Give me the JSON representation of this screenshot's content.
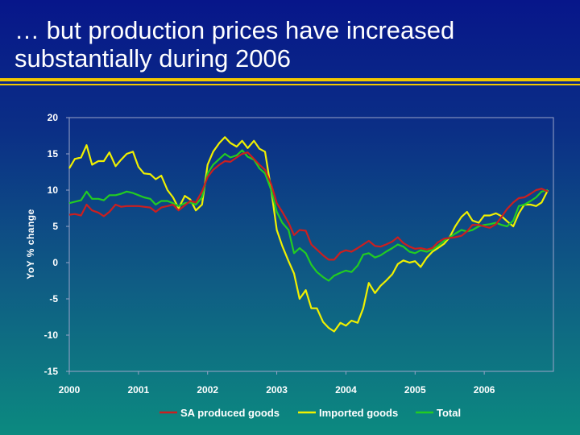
{
  "slide": {
    "title": "… but production prices have increased substantially during 2006"
  },
  "colors": {
    "background_top": "#07168a",
    "background_bottom": "#0c8a80",
    "rule": "#f2c800",
    "text": "#ffffff"
  },
  "chart_data": {
    "type": "line",
    "title": "",
    "xlabel": "",
    "ylabel": "YoY % change",
    "xlim": [
      2000,
      2007
    ],
    "ylim": [
      -15,
      20
    ],
    "y_ticks": [
      20,
      15,
      10,
      5,
      0,
      -5,
      -10,
      -15
    ],
    "x_ticks": [
      "2000",
      "2001",
      "2002",
      "2003",
      "2004",
      "2005",
      "2006"
    ],
    "x_tick_values": [
      2000,
      2001,
      2002,
      2003,
      2004,
      2005,
      2006
    ],
    "grid": false,
    "legend": "bottom",
    "series": [
      {
        "name": "SA produced goods",
        "color": "#cc1f1f",
        "x": [
          2000.0,
          2000.08,
          2000.17,
          2000.25,
          2000.33,
          2000.42,
          2000.5,
          2000.58,
          2000.67,
          2000.75,
          2000.83,
          2000.92,
          2001.0,
          2001.08,
          2001.17,
          2001.25,
          2001.33,
          2001.42,
          2001.5,
          2001.58,
          2001.67,
          2001.75,
          2001.83,
          2001.92,
          2002.0,
          2002.08,
          2002.17,
          2002.25,
          2002.33,
          2002.42,
          2002.5,
          2002.58,
          2002.67,
          2002.75,
          2002.83,
          2002.92,
          2003.0,
          2003.08,
          2003.17,
          2003.25,
          2003.33,
          2003.42,
          2003.5,
          2003.58,
          2003.67,
          2003.75,
          2003.83,
          2003.92,
          2004.0,
          2004.08,
          2004.17,
          2004.25,
          2004.33,
          2004.42,
          2004.5,
          2004.58,
          2004.67,
          2004.75,
          2004.83,
          2004.92,
          2005.0,
          2005.08,
          2005.17,
          2005.25,
          2005.33,
          2005.42,
          2005.5,
          2005.58,
          2005.67,
          2005.75,
          2005.83,
          2005.92,
          2006.0,
          2006.08,
          2006.17,
          2006.25,
          2006.33,
          2006.42,
          2006.5,
          2006.58,
          2006.67,
          2006.75,
          2006.83,
          2006.92
        ],
        "values": [
          6.6,
          6.7,
          6.5,
          8.0,
          7.2,
          6.9,
          6.4,
          7.0,
          8.0,
          7.7,
          7.8,
          7.8,
          7.8,
          7.7,
          7.6,
          7.0,
          7.6,
          7.8,
          8.0,
          7.2,
          7.9,
          8.5,
          8.3,
          9.8,
          11.8,
          12.8,
          13.5,
          14.0,
          13.9,
          14.5,
          15.0,
          15.2,
          14.3,
          13.5,
          12.8,
          10.8,
          8.2,
          7.0,
          5.5,
          3.8,
          4.5,
          4.4,
          2.5,
          1.8,
          1.0,
          0.4,
          0.4,
          1.4,
          1.7,
          1.5,
          2.0,
          2.5,
          3.0,
          2.3,
          2.2,
          2.5,
          2.9,
          3.5,
          2.7,
          2.2,
          1.9,
          2.0,
          1.8,
          2.0,
          2.8,
          3.3,
          3.4,
          3.5,
          3.7,
          4.3,
          5.2,
          5.2,
          5.0,
          4.8,
          5.3,
          6.3,
          7.4,
          8.3,
          8.9,
          9.0,
          9.5,
          10.0,
          10.2,
          9.8
        ]
      },
      {
        "name": "Imported goods",
        "color": "#f0f000",
        "x": [
          2000.0,
          2000.08,
          2000.17,
          2000.25,
          2000.33,
          2000.42,
          2000.5,
          2000.58,
          2000.67,
          2000.75,
          2000.83,
          2000.92,
          2001.0,
          2001.08,
          2001.17,
          2001.25,
          2001.33,
          2001.42,
          2001.5,
          2001.58,
          2001.67,
          2001.75,
          2001.83,
          2001.92,
          2002.0,
          2002.08,
          2002.17,
          2002.25,
          2002.33,
          2002.42,
          2002.5,
          2002.58,
          2002.67,
          2002.75,
          2002.83,
          2002.92,
          2003.0,
          2003.08,
          2003.17,
          2003.25,
          2003.33,
          2003.42,
          2003.5,
          2003.58,
          2003.67,
          2003.75,
          2003.83,
          2003.92,
          2004.0,
          2004.08,
          2004.17,
          2004.25,
          2004.33,
          2004.42,
          2004.5,
          2004.58,
          2004.67,
          2004.75,
          2004.83,
          2004.92,
          2005.0,
          2005.08,
          2005.17,
          2005.25,
          2005.33,
          2005.42,
          2005.5,
          2005.58,
          2005.67,
          2005.75,
          2005.83,
          2005.92,
          2006.0,
          2006.08,
          2006.17,
          2006.25,
          2006.33,
          2006.42,
          2006.5,
          2006.58,
          2006.67,
          2006.75,
          2006.83,
          2006.92
        ],
        "values": [
          13.0,
          14.3,
          14.5,
          16.2,
          13.5,
          14.0,
          14.0,
          15.2,
          13.3,
          14.2,
          15.0,
          15.3,
          13.2,
          12.3,
          12.2,
          11.5,
          12.0,
          10.0,
          9.0,
          7.5,
          9.2,
          8.7,
          7.2,
          8.0,
          13.5,
          15.3,
          16.5,
          17.3,
          16.5,
          16.0,
          16.8,
          15.8,
          16.8,
          15.7,
          15.3,
          10.0,
          4.5,
          2.3,
          0.2,
          -1.5,
          -5.0,
          -3.8,
          -6.3,
          -6.3,
          -8.2,
          -9.0,
          -9.5,
          -8.3,
          -8.7,
          -8.0,
          -8.3,
          -6.3,
          -2.8,
          -4.2,
          -3.2,
          -2.5,
          -1.6,
          -0.2,
          0.3,
          0.0,
          0.2,
          -0.6,
          0.7,
          1.5,
          2.0,
          2.6,
          3.5,
          5.0,
          6.3,
          7.0,
          5.8,
          5.5,
          6.5,
          6.5,
          6.8,
          6.4,
          5.7,
          5.0,
          6.8,
          8.0,
          8.0,
          7.8,
          8.3,
          10.0
        ]
      },
      {
        "name": "Total",
        "color": "#22cc22",
        "x": [
          2000.0,
          2000.08,
          2000.17,
          2000.25,
          2000.33,
          2000.42,
          2000.5,
          2000.58,
          2000.67,
          2000.75,
          2000.83,
          2000.92,
          2001.0,
          2001.08,
          2001.17,
          2001.25,
          2001.33,
          2001.42,
          2001.5,
          2001.58,
          2001.67,
          2001.75,
          2001.83,
          2001.92,
          2002.0,
          2002.08,
          2002.17,
          2002.25,
          2002.33,
          2002.42,
          2002.5,
          2002.58,
          2002.67,
          2002.75,
          2002.83,
          2002.92,
          2003.0,
          2003.08,
          2003.17,
          2003.25,
          2003.33,
          2003.42,
          2003.5,
          2003.58,
          2003.67,
          2003.75,
          2003.83,
          2003.92,
          2004.0,
          2004.08,
          2004.17,
          2004.25,
          2004.33,
          2004.42,
          2004.5,
          2004.58,
          2004.67,
          2004.75,
          2004.83,
          2004.92,
          2005.0,
          2005.08,
          2005.17,
          2005.25,
          2005.33,
          2005.42,
          2005.5,
          2005.58,
          2005.67,
          2005.75,
          2005.83,
          2005.92,
          2006.0,
          2006.08,
          2006.17,
          2006.25,
          2006.33,
          2006.42,
          2006.5,
          2006.58,
          2006.67,
          2006.75,
          2006.83,
          2006.92
        ],
        "values": [
          8.2,
          8.4,
          8.6,
          9.8,
          8.8,
          8.8,
          8.6,
          9.3,
          9.3,
          9.5,
          9.8,
          9.6,
          9.3,
          9.0,
          8.8,
          8.0,
          8.5,
          8.5,
          8.2,
          7.8,
          8.2,
          8.3,
          8.0,
          9.0,
          12.3,
          13.5,
          14.3,
          15.0,
          14.5,
          14.8,
          15.5,
          14.6,
          14.2,
          13.0,
          12.3,
          10.0,
          7.0,
          5.5,
          4.5,
          1.3,
          2.0,
          1.3,
          -0.3,
          -1.3,
          -2.0,
          -2.5,
          -1.8,
          -1.4,
          -1.1,
          -1.3,
          -0.4,
          1.1,
          1.3,
          0.7,
          1.0,
          1.5,
          2.0,
          2.5,
          2.2,
          1.5,
          1.3,
          1.7,
          1.5,
          1.8,
          2.3,
          3.0,
          3.5,
          4.0,
          4.5,
          4.3,
          4.5,
          5.0,
          5.2,
          5.3,
          5.5,
          5.2,
          5.0,
          5.8,
          7.8,
          8.0,
          8.5,
          9.0,
          9.8,
          10.0
        ]
      }
    ]
  }
}
